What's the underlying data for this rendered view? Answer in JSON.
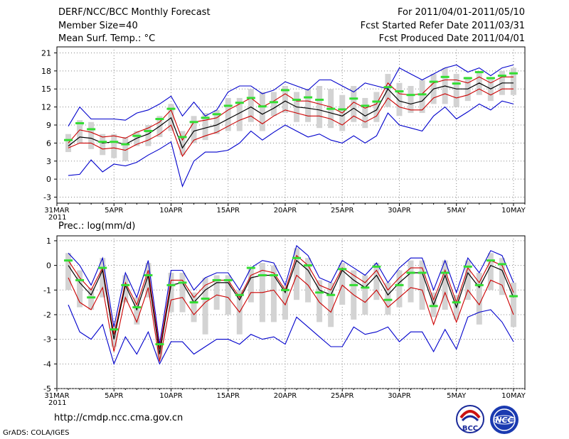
{
  "header": {
    "title": "DERF/NCC/BCC Monthly Forecast",
    "member_size": "Member Size=40",
    "variable": "Mean Surf. Temp.: °C",
    "forecast_period": "For 2011/04/01-2011/05/10",
    "started_refer": "Fcst Started Refer Date 2011/03/31",
    "produced": "Fcst Produced Date 2011/04/01"
  },
  "footer": {
    "url": "http://cmdp.ncc.cma.gov.cn",
    "grads": "GrADS: COLA/IGES"
  },
  "logos": {
    "bcc": "BCC",
    "ncc": "NCC"
  },
  "colors": {
    "mean": "#000000",
    "spread": "#cc0000",
    "envelope": "#0000cc",
    "box": "#d3d3d3",
    "marker": "#33dd33",
    "grid": "#888888"
  },
  "chart_data": [
    {
      "type": "line",
      "title": "Mean Surf. Temp.: °C",
      "x_tick_labels": [
        "31MAR\n2011",
        "5APR",
        "10APR",
        "15APR",
        "20APR",
        "25APR",
        "30APR",
        "5MAY",
        "10MAY"
      ],
      "y_ticks": [
        -3,
        0,
        3,
        6,
        9,
        12,
        15,
        18,
        21
      ],
      "ylim": [
        -4,
        22
      ],
      "days": [
        1,
        2,
        3,
        4,
        5,
        6,
        7,
        8,
        9,
        10,
        11,
        12,
        13,
        14,
        15,
        16,
        17,
        18,
        19,
        20,
        21,
        22,
        23,
        24,
        25,
        26,
        27,
        28,
        29,
        30,
        31,
        32,
        33,
        34,
        35,
        36,
        37,
        38,
        39,
        40
      ],
      "series": [
        {
          "name": "ensemble-max",
          "values": [
            8.8,
            12,
            10,
            10,
            10,
            9.8,
            11,
            11.5,
            12.5,
            13.8,
            10.5,
            12.8,
            10.5,
            11.5,
            14.5,
            15.5,
            15.5,
            14.2,
            14.8,
            16.2,
            15.5,
            14.8,
            16.5,
            16.5,
            15.5,
            14.5,
            16,
            15.5,
            15,
            18.5,
            17.5,
            16.5,
            17.5,
            18.5,
            19,
            17.8,
            18.5,
            17.2,
            18.5,
            19
          ]
        },
        {
          "name": "spread-upper",
          "values": [
            6,
            8.2,
            7.8,
            7,
            7.2,
            6.8,
            7.8,
            8.5,
            9.5,
            11.5,
            6.5,
            9.5,
            9.8,
            10.2,
            11.5,
            12.5,
            13.5,
            12,
            13,
            14.2,
            13,
            13,
            12.5,
            12,
            11,
            12.8,
            11.8,
            12.5,
            16,
            14.2,
            14,
            14.2,
            16,
            16.5,
            16.5,
            16,
            17,
            16,
            17,
            17
          ]
        },
        {
          "name": "ensemble-mean",
          "values": [
            5.5,
            7,
            6.8,
            6,
            6.2,
            5.8,
            6.8,
            7.5,
            8.8,
            10.2,
            5.2,
            8,
            8.5,
            9,
            10,
            11,
            12,
            10.8,
            11.8,
            13,
            12,
            11.8,
            11.5,
            11,
            10.5,
            11.8,
            10.5,
            11.5,
            15,
            13,
            12.5,
            13,
            15,
            15.5,
            15,
            15,
            16,
            15,
            16,
            16
          ]
        },
        {
          "name": "spread-lower",
          "values": [
            5.2,
            6,
            6,
            5,
            5.2,
            4.8,
            5.8,
            6.5,
            7.5,
            9,
            3.8,
            6.5,
            7.2,
            7.8,
            8.8,
            9.8,
            10.5,
            9.2,
            10.5,
            11.5,
            11,
            10.5,
            10.5,
            10,
            9,
            10.5,
            9.5,
            10.5,
            13.5,
            12,
            11.5,
            11.5,
            13.5,
            14.2,
            13.5,
            14,
            15,
            14,
            15,
            15
          ]
        },
        {
          "name": "ensemble-min",
          "values": [
            0.6,
            0.8,
            3.2,
            1.2,
            2.5,
            2.2,
            2.8,
            4,
            5,
            6.2,
            -1.2,
            3,
            4.5,
            4.5,
            4.8,
            6,
            8,
            6.5,
            7.8,
            9,
            8,
            7,
            7.5,
            6.5,
            6,
            7.2,
            6,
            7.2,
            11,
            9,
            8.5,
            8,
            10.5,
            12,
            10,
            11.2,
            12.5,
            11.5,
            13,
            12.5
          ]
        },
        {
          "name": "box-top",
          "values": [
            7.5,
            9.8,
            9.5,
            7.5,
            7.5,
            7,
            8,
            9,
            10.5,
            12.5,
            8,
            10.5,
            11,
            11.5,
            13.5,
            13.5,
            15,
            14.5,
            14.5,
            15.5,
            14.5,
            15,
            15.5,
            15,
            14,
            15.5,
            13.5,
            14.5,
            17.5,
            16,
            15.5,
            16.5,
            17.5,
            18.5,
            17.5,
            17,
            18,
            17,
            18,
            18.5
          ]
        },
        {
          "name": "box-bottom",
          "values": [
            4.5,
            6,
            5,
            4,
            3.5,
            3,
            5.5,
            5.5,
            7,
            8,
            4,
            6,
            6.5,
            7.5,
            8,
            8,
            9.5,
            8,
            10.5,
            11,
            9.5,
            9.5,
            8.5,
            8.5,
            8,
            9.5,
            8.5,
            9.5,
            12,
            10.5,
            11,
            11,
            12.5,
            12.5,
            12,
            13,
            14,
            13,
            14,
            14
          ]
        },
        {
          "name": "marker",
          "values": [
            6.5,
            9.3,
            8.3,
            6.2,
            6.2,
            5.8,
            7.2,
            8,
            10,
            11.7,
            7,
            9.5,
            10.2,
            10.8,
            12.2,
            12.7,
            13.5,
            12.1,
            12.8,
            14.8,
            13.2,
            13.6,
            13.2,
            11.7,
            11.6,
            13.4,
            12.2,
            12.9,
            15.3,
            14.6,
            14,
            14.1,
            16.2,
            17,
            15.9,
            16.8,
            17.8,
            16.8,
            17.2,
            17.6
          ]
        }
      ]
    },
    {
      "type": "line",
      "title": "Prec.: log(mm/d)",
      "x_tick_labels": [
        "31MAR\n2011",
        "5APR",
        "10APR",
        "15APR",
        "20APR",
        "25APR",
        "30APR",
        "5MAY",
        "10MAY"
      ],
      "y_ticks": [
        -5,
        -4,
        -3,
        -2,
        -1,
        0,
        1
      ],
      "ylim": [
        -5,
        1.2
      ],
      "days": [
        1,
        2,
        3,
        4,
        5,
        6,
        7,
        8,
        9,
        10,
        11,
        12,
        13,
        14,
        15,
        16,
        17,
        18,
        19,
        20,
        21,
        22,
        23,
        24,
        25,
        26,
        27,
        28,
        29,
        30,
        31,
        32,
        33,
        34,
        35,
        36,
        37,
        38,
        39,
        40
      ],
      "series": [
        {
          "name": "ensemble-max",
          "values": [
            0.5,
            0,
            -0.8,
            0.3,
            -2.5,
            -0.3,
            -1.3,
            0.2,
            -3.2,
            -0.2,
            -0.2,
            -1,
            -0.5,
            -0.3,
            -0.3,
            -1,
            -0.1,
            0.2,
            0.1,
            -0.8,
            0.8,
            0.4,
            -0.5,
            -0.7,
            0.2,
            -0.1,
            -0.4,
            0.1,
            -0.7,
            -0.1,
            0.3,
            0.3,
            -1,
            0.2,
            -1.1,
            0.3,
            -0.3,
            0.6,
            0.4,
            -0.7
          ]
        },
        {
          "name": "spread-upper",
          "values": [
            0.2,
            -0.5,
            -1,
            -0.1,
            -2.8,
            -0.7,
            -1.6,
            -0.2,
            -3.4,
            -0.6,
            -0.6,
            -1.3,
            -0.8,
            -0.6,
            -0.6,
            -1.3,
            -0.4,
            -0.2,
            -0.3,
            -1,
            0.4,
            0,
            -0.8,
            -1,
            -0.1,
            -0.4,
            -0.7,
            -0.2,
            -1,
            -0.5,
            -0.1,
            -0.1,
            -1.4,
            -0.2,
            -1.5,
            -0.1,
            -0.7,
            0.2,
            0,
            -1.1
          ]
        },
        {
          "name": "ensemble-mean",
          "values": [
            0,
            -0.7,
            -1.2,
            -0.2,
            -3,
            -0.8,
            -1.8,
            -0.4,
            -3.6,
            -0.8,
            -0.7,
            -1.5,
            -1,
            -0.7,
            -0.7,
            -1.4,
            -0.5,
            -0.4,
            -0.4,
            -1.1,
            0.2,
            -0.2,
            -1,
            -1.2,
            -0.2,
            -0.6,
            -0.9,
            -0.4,
            -1.2,
            -0.7,
            -0.3,
            -0.3,
            -1.6,
            -0.4,
            -1.7,
            -0.3,
            -0.9,
            0,
            -0.2,
            -1.3
          ]
        },
        {
          "name": "spread-lower",
          "values": [
            -0.5,
            -1.5,
            -1.8,
            -0.9,
            -3.5,
            -1.3,
            -2.3,
            -0.9,
            -3.9,
            -1.4,
            -1.3,
            -2,
            -1.5,
            -1.2,
            -1.3,
            -1.9,
            -1.1,
            -1.1,
            -1,
            -1.6,
            -0.4,
            -0.8,
            -1.5,
            -1.9,
            -0.8,
            -1.2,
            -1.5,
            -1,
            -1.7,
            -1.3,
            -0.9,
            -1,
            -2.4,
            -1.1,
            -2.3,
            -1,
            -1.6,
            -0.6,
            -0.8,
            -2
          ]
        },
        {
          "name": "ensemble-min",
          "values": [
            -1.6,
            -2.7,
            -3,
            -2.4,
            -4,
            -2.9,
            -3.6,
            -2.7,
            -4,
            -3.1,
            -3.1,
            -3.6,
            -3.3,
            -3,
            -3,
            -3.2,
            -2.8,
            -3,
            -2.9,
            -3.2,
            -2.1,
            -2.5,
            -2.9,
            -3.3,
            -3.3,
            -2.5,
            -2.8,
            -2.7,
            -2.5,
            -3.1,
            -2.7,
            -2.7,
            -3.5,
            -2.6,
            -3.4,
            -2.1,
            -1.9,
            -1.8,
            -2.3,
            -3.1
          ]
        },
        {
          "name": "box-top",
          "values": [
            0.5,
            -0.2,
            -0.9,
            0.3,
            -2.4,
            -0.4,
            -1.3,
            0.1,
            -3.1,
            -0.3,
            -0.3,
            -1.1,
            -0.5,
            -0.4,
            -0.4,
            -1,
            -0.1,
            0.1,
            0,
            -0.8,
            0.7,
            0.3,
            -0.6,
            -0.7,
            0.1,
            -0.2,
            -0.4,
            0.1,
            -0.7,
            -0.2,
            0.2,
            0.2,
            -1.1,
            0.2,
            -1.2,
            0.2,
            -0.3,
            0.5,
            0.3,
            -0.7
          ]
        },
        {
          "name": "box-bottom",
          "values": [
            -1,
            -1.7,
            -1.8,
            -1.3,
            -3.3,
            -1.5,
            -2.4,
            -1.3,
            -3.8,
            -1.9,
            -1.9,
            -2.3,
            -2.8,
            -1.8,
            -2,
            -2.8,
            -1.5,
            -2.3,
            -2.3,
            -2.2,
            -1.4,
            -1.5,
            -2.3,
            -2.5,
            -1.6,
            -2.2,
            -2,
            -1.4,
            -2,
            -1.7,
            -1.5,
            -1.8,
            -2.1,
            -1.8,
            -2.2,
            -1.4,
            -2.4,
            -1,
            -1.2,
            -2.5
          ]
        },
        {
          "name": "marker",
          "values": [
            0.2,
            -0.6,
            -1.3,
            -0.1,
            -2.6,
            -0.8,
            -1.7,
            -0.4,
            -3.2,
            -0.8,
            -0.7,
            -1.5,
            -1.35,
            -0.6,
            -0.6,
            -1.2,
            -0.1,
            -0.4,
            -0.4,
            -1,
            0.3,
            0,
            -1.1,
            -1.2,
            -0.15,
            -0.8,
            -0.9,
            -0.05,
            -1.4,
            -0.8,
            -0.3,
            -0.3,
            -1.65,
            -0.3,
            -1.5,
            -0.05,
            -0.8,
            0.2,
            0.05,
            -1.25
          ]
        }
      ]
    }
  ]
}
